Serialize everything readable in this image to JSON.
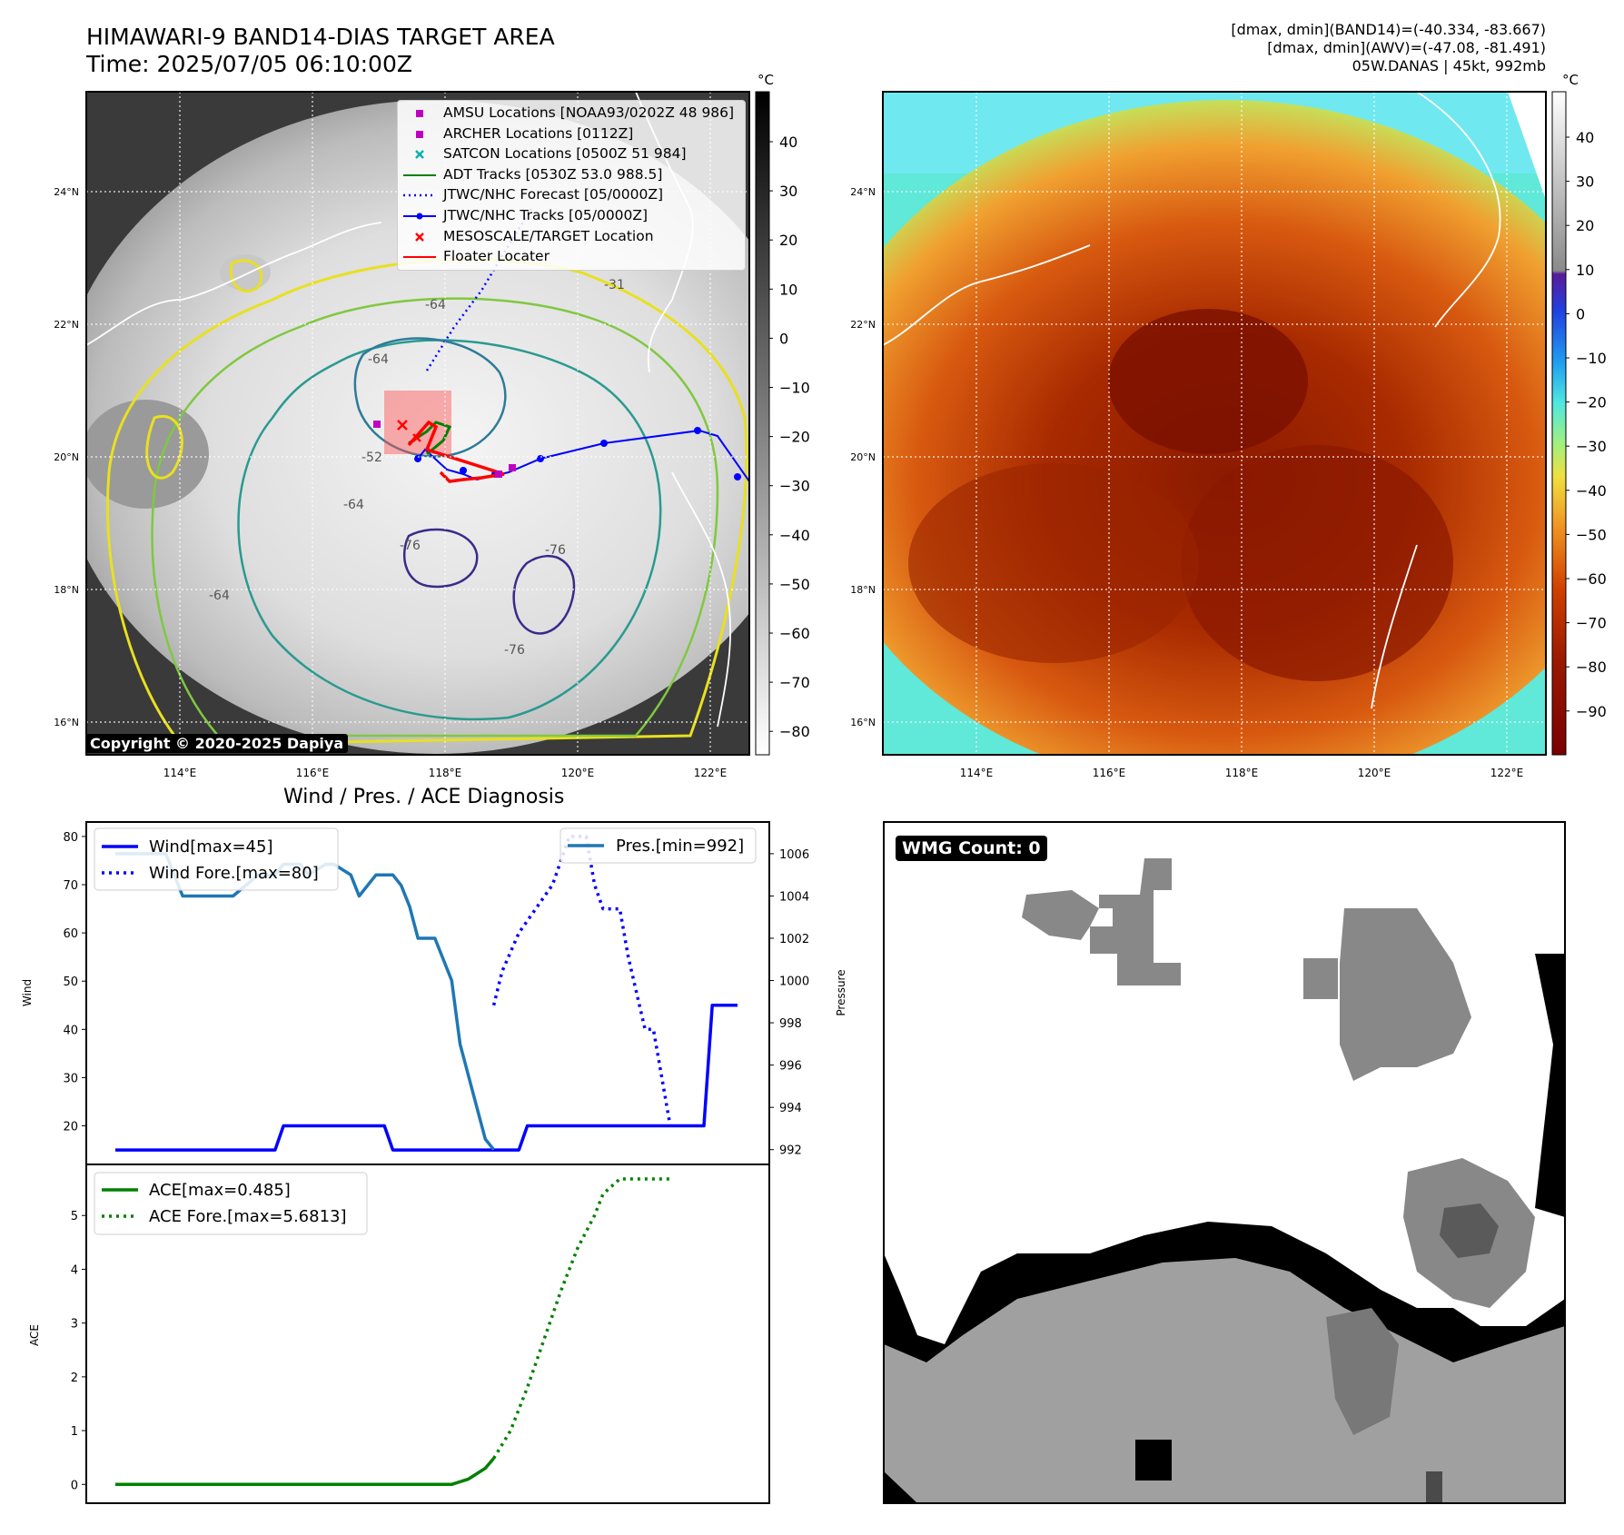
{
  "header": {
    "title_line1": "HIMAWARI-9 BAND14-DIAS TARGET AREA",
    "title_line2": "Time: 2025/07/05 06:10:00Z",
    "info_line1": "[dmax, dmin](BAND14)=(-40.334, -83.667)",
    "info_line2": "[dmax, dmin](AWV)=(-47.08, -81.491)",
    "info_line3": "05W.DANAS | 45kt, 992mb"
  },
  "map_left": {
    "lat_ticks": [
      "24°N",
      "22°N",
      "20°N",
      "18°N",
      "16°N"
    ],
    "lon_ticks": [
      "114°E",
      "116°E",
      "118°E",
      "120°E",
      "122°E"
    ],
    "colorbar_unit": "°C",
    "colorbar_ticks": [
      "40",
      "30",
      "20",
      "10",
      "0",
      "−10",
      "−20",
      "−30",
      "−40",
      "−50",
      "−60",
      "−70",
      "−80"
    ],
    "copyright": "Copyright © 2020-2025 Dapiya",
    "legend": [
      {
        "label": "AMSU Locations [NOAA93/0202Z 48 986]",
        "color": "#c000c0",
        "marker": "square"
      },
      {
        "label": "ARCHER Locations [0112Z]",
        "color": "#c000c0",
        "marker": "square"
      },
      {
        "label": "SATCON Locations [0500Z 51 984]",
        "color": "#00b0b0",
        "marker": "x"
      },
      {
        "label": "ADT Tracks [0530Z 53.0 988.5]",
        "color": "#008000",
        "marker": "line"
      },
      {
        "label": "JTWC/NHC Forecast [05/0000Z]",
        "color": "#0000ff",
        "marker": "dotted"
      },
      {
        "label": "JTWC/NHC Tracks [05/0000Z]",
        "color": "#0000ff",
        "marker": "line-dot"
      },
      {
        "label": "MESOSCALE/TARGET Location",
        "color": "#ff0000",
        "marker": "x"
      },
      {
        "label": "Floater Locater",
        "color": "#ff0000",
        "marker": "line"
      }
    ],
    "contour_labels": [
      "-64",
      "-64",
      "-64",
      "-76",
      "-76",
      "-76",
      "-52",
      "-31",
      "-64"
    ]
  },
  "map_right": {
    "lat_ticks": [
      "24°N",
      "22°N",
      "20°N",
      "18°N",
      "16°N"
    ],
    "lon_ticks": [
      "114°E",
      "116°E",
      "118°E",
      "120°E",
      "122°E"
    ],
    "colorbar_unit": "°C",
    "colorbar_ticks": [
      "40",
      "30",
      "20",
      "10",
      "0",
      "−10",
      "−20",
      "−30",
      "−40",
      "−50",
      "−60",
      "−70",
      "−80",
      "−90"
    ]
  },
  "diagnosis": {
    "title": "Wind / Pres. / ACE Diagnosis",
    "wind_ylabel": "Wind",
    "pres_ylabel": "Pressure",
    "ace_ylabel": "ACE"
  },
  "wmg": {
    "label": "WMG Count: 0"
  },
  "chart_data": [
    {
      "type": "line",
      "title": "",
      "ylabel": "Wind",
      "y2label": "Pressure",
      "ylim": [
        12,
        83
      ],
      "y2lim": [
        991.3,
        1007.5
      ],
      "y_ticks": [
        20,
        30,
        40,
        50,
        60,
        70,
        80
      ],
      "y2_ticks": [
        992,
        994,
        996,
        998,
        1000,
        1002,
        1004,
        1006
      ],
      "series": [
        {
          "name": "Wind[max=45]",
          "color": "#0000ff",
          "style": "solid",
          "axis": "left",
          "x": [
            0,
            14,
            15,
            19,
            20,
            21,
            22,
            32,
            33,
            35,
            36,
            37,
            38,
            47,
            48,
            49,
            50,
            53,
            54,
            56,
            57,
            58,
            59,
            62,
            63,
            64,
            65,
            66,
            67,
            68,
            69,
            70,
            71,
            72,
            73,
            74
          ],
          "values": [
            15,
            15,
            15,
            15,
            20,
            20,
            20,
            20,
            15,
            15,
            15,
            15,
            15,
            15,
            15,
            20,
            20,
            20,
            20,
            20,
            20,
            20,
            20,
            20,
            20,
            20,
            20,
            20,
            20,
            20,
            20,
            20,
            45,
            45,
            45,
            45
          ]
        },
        {
          "name": "Wind Fore.[max=80]",
          "color": "#0000ff",
          "style": "dotted",
          "axis": "left",
          "x": [
            45,
            46,
            48,
            50,
            52,
            53,
            54,
            56,
            57,
            58,
            60,
            61,
            63,
            64,
            66
          ],
          "values": [
            45,
            52,
            60,
            65,
            70,
            75,
            80,
            80,
            70,
            65,
            65,
            55,
            40,
            40,
            20
          ]
        },
        {
          "name": "Pres.[min=992]",
          "color": "#1f77b4",
          "style": "solid",
          "axis": "right",
          "x": [
            0,
            6,
            8,
            13,
            14,
            17,
            19,
            20,
            22,
            23,
            25,
            26,
            28,
            29,
            31,
            33,
            34,
            35,
            36,
            38,
            40,
            41,
            43,
            44,
            45
          ],
          "values": [
            1006,
            1006,
            1004,
            1004,
            1004,
            1005,
            1005,
            1005.5,
            1005.5,
            1005,
            1005.5,
            1005.5,
            1005,
            1004,
            1005,
            1005,
            1004.5,
            1003.5,
            1002,
            1002,
            1000,
            997,
            994,
            992.5,
            992
          ]
        },
        {
          "name": "ACE[max=0.485]",
          "color": "#008000",
          "style": "solid",
          "axis": "ace",
          "x": [
            0,
            40,
            42,
            44,
            45
          ],
          "values": [
            0,
            0,
            0.1,
            0.3,
            0.485
          ]
        },
        {
          "name": "ACE Fore.[max=5.6813]",
          "color": "#008000",
          "style": "dotted",
          "axis": "ace",
          "x": [
            45,
            47,
            49,
            51,
            53,
            55,
            57,
            58,
            60,
            62,
            64,
            66
          ],
          "values": [
            0.485,
            1.0,
            1.8,
            2.7,
            3.6,
            4.4,
            5.0,
            5.4,
            5.68,
            5.68,
            5.68,
            5.68
          ]
        }
      ]
    }
  ]
}
